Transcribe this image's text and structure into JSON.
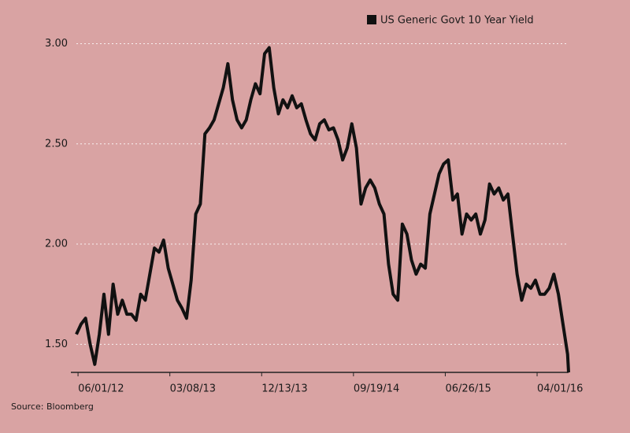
{
  "chart_data": {
    "type": "line",
    "legend_label": "US Generic Govt 10 Year Yield",
    "source": "Source: Bloomberg",
    "x": [
      "05/27/12",
      "06/10/12",
      "06/24/12",
      "07/08/12",
      "07/22/12",
      "08/05/12",
      "08/19/12",
      "09/02/12",
      "09/16/12",
      "09/30/12",
      "10/14/12",
      "10/28/12",
      "11/11/12",
      "11/25/12",
      "12/09/12",
      "12/23/12",
      "01/06/13",
      "01/20/13",
      "02/03/13",
      "02/17/13",
      "03/03/13",
      "03/17/13",
      "03/31/13",
      "04/14/13",
      "04/28/13",
      "05/12/13",
      "05/26/13",
      "06/09/13",
      "06/23/13",
      "07/07/13",
      "07/21/13",
      "08/04/13",
      "08/18/13",
      "09/01/13",
      "09/15/13",
      "09/29/13",
      "10/13/13",
      "10/27/13",
      "11/10/13",
      "11/24/13",
      "12/08/13",
      "12/22/13",
      "01/05/14",
      "01/19/14",
      "02/02/14",
      "02/16/14",
      "03/02/14",
      "03/16/14",
      "03/30/14",
      "04/13/14",
      "04/27/14",
      "05/11/14",
      "05/25/14",
      "06/08/14",
      "06/22/14",
      "07/06/14",
      "07/20/14",
      "08/03/14",
      "08/17/14",
      "08/31/14",
      "09/14/14",
      "09/28/14",
      "10/12/14",
      "10/26/14",
      "11/09/14",
      "11/23/14",
      "12/07/14",
      "12/21/14",
      "01/04/15",
      "01/18/15",
      "02/01/15",
      "02/15/15",
      "03/01/15",
      "03/15/15",
      "03/29/15",
      "04/12/15",
      "04/26/15",
      "05/10/15",
      "05/24/15",
      "06/07/15",
      "06/21/15",
      "07/05/15",
      "07/19/15",
      "08/02/15",
      "08/16/15",
      "08/30/15",
      "09/13/15",
      "09/27/15",
      "10/11/15",
      "10/25/15",
      "11/08/15",
      "11/22/15",
      "12/06/15",
      "12/20/15",
      "01/03/16",
      "01/17/16",
      "01/31/16",
      "02/14/16",
      "02/28/16",
      "03/13/16",
      "03/27/16",
      "04/10/16",
      "04/24/16",
      "05/08/16",
      "05/22/16",
      "06/05/16",
      "06/19/16",
      "07/03/16",
      "07/06/16"
    ],
    "series": [
      {
        "name": "US Generic Govt 10 Year Yield",
        "color": "#111111",
        "values": [
          1.55,
          1.6,
          1.63,
          1.5,
          1.4,
          1.55,
          1.75,
          1.55,
          1.8,
          1.65,
          1.72,
          1.65,
          1.65,
          1.62,
          1.75,
          1.72,
          1.85,
          1.98,
          1.96,
          2.02,
          1.88,
          1.8,
          1.72,
          1.68,
          1.63,
          1.82,
          2.15,
          2.2,
          2.55,
          2.58,
          2.62,
          2.7,
          2.78,
          2.9,
          2.72,
          2.62,
          2.58,
          2.62,
          2.72,
          2.8,
          2.75,
          2.95,
          2.98,
          2.78,
          2.65,
          2.72,
          2.68,
          2.74,
          2.68,
          2.7,
          2.62,
          2.55,
          2.52,
          2.6,
          2.62,
          2.57,
          2.58,
          2.52,
          2.42,
          2.48,
          2.6,
          2.48,
          2.2,
          2.28,
          2.32,
          2.28,
          2.2,
          2.15,
          1.9,
          1.75,
          1.72,
          2.1,
          2.05,
          1.92,
          1.85,
          1.9,
          1.88,
          2.15,
          2.25,
          2.35,
          2.4,
          2.42,
          2.22,
          2.25,
          2.05,
          2.15,
          2.12,
          2.15,
          2.05,
          2.12,
          2.3,
          2.25,
          2.28,
          2.22,
          2.25,
          2.05,
          1.85,
          1.72,
          1.8,
          1.78,
          1.82,
          1.75,
          1.75,
          1.78,
          1.85,
          1.75,
          1.6,
          1.45,
          1.36
        ]
      }
    ],
    "xlim": [
      "05/27/12",
      "07/06/16"
    ],
    "xticks": [
      "06/01/12",
      "03/08/13",
      "12/13/13",
      "09/19/14",
      "06/26/15",
      "04/01/16"
    ],
    "ylim": [
      1.36,
      3.1
    ],
    "yticks": [
      {
        "value": 1.5,
        "label": "1.50"
      },
      {
        "value": 2,
        "label": "2.00"
      },
      {
        "value": 2.5,
        "label": "2.50"
      },
      {
        "value": 3,
        "label": "3.00"
      }
    ],
    "grid": true
  }
}
